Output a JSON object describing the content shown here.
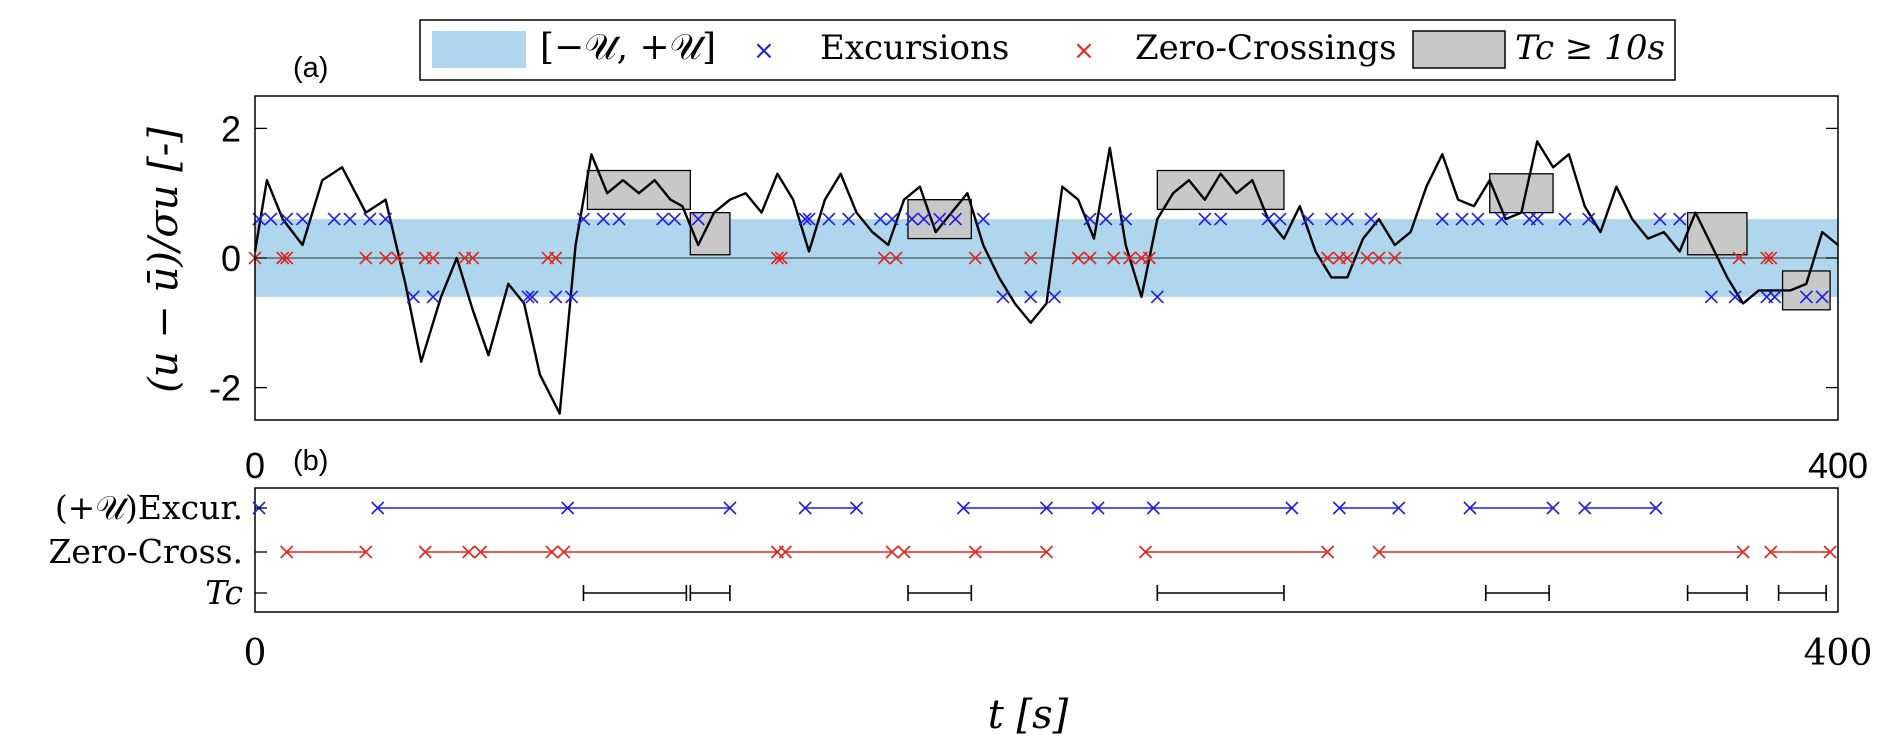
{
  "legend": {
    "band_label": "[−𝒰, +𝒰]",
    "excursions_label": "Excursions",
    "zero_crossings_label": "Zero-Crossings",
    "tc_label": "Tc ≥ 10s"
  },
  "panel_a": {
    "tag": "(a)",
    "ylabel": "(u − ū)/σu [-]"
  },
  "panel_b": {
    "tag": "(b)"
  },
  "xlabel": "t [s]",
  "colors": {
    "band": "#aed6ec",
    "excursion": "#1a1aff",
    "zero_crossing": "#e8241c",
    "tc_box": "#c8c8c8",
    "trace": "#000000"
  },
  "chart_data": [
    {
      "type": "line",
      "panel": "a",
      "xlim": [
        0,
        400
      ],
      "ylim": [
        -2.5,
        2.5
      ],
      "x_ticks": [
        "0",
        "400"
      ],
      "y_ticks": [
        "2",
        "0",
        "-2"
      ],
      "band": [
        -0.6,
        0.6
      ],
      "series_signal": {
        "x": [
          0,
          3,
          7,
          12,
          17,
          22,
          28,
          33,
          38,
          42,
          47,
          51,
          55,
          59,
          64,
          68,
          72,
          77,
          81,
          85,
          89,
          93,
          97,
          101,
          105,
          108,
          112,
          116,
          120,
          124,
          128,
          132,
          136,
          140,
          144,
          148,
          152,
          156,
          160,
          164,
          168,
          172,
          176,
          180,
          184,
          188,
          192,
          196,
          200,
          204,
          208,
          212,
          216,
          220,
          224,
          228,
          232,
          236,
          240,
          244,
          248,
          252,
          256,
          260,
          264,
          268,
          272,
          276,
          280,
          284,
          288,
          292,
          296,
          300,
          304,
          308,
          312,
          316,
          320,
          324,
          328,
          332,
          336,
          340,
          344,
          348,
          352,
          356,
          360,
          364,
          368,
          372,
          376,
          380,
          384,
          388,
          392,
          396,
          400
        ],
        "y": [
          0.1,
          1.2,
          0.6,
          0.2,
          1.2,
          1.4,
          0.7,
          0.9,
          -0.4,
          -1.6,
          -0.6,
          0.0,
          -0.8,
          -1.5,
          -0.4,
          -0.7,
          -1.8,
          -2.4,
          0.2,
          1.6,
          1.0,
          1.2,
          1.0,
          1.2,
          0.9,
          0.8,
          0.2,
          0.7,
          0.9,
          1.0,
          0.7,
          1.3,
          0.9,
          0.1,
          0.9,
          1.3,
          0.7,
          0.4,
          0.2,
          0.9,
          1.1,
          0.4,
          0.7,
          1.0,
          0.2,
          -0.3,
          -0.7,
          -1.0,
          -0.7,
          1.1,
          0.9,
          0.3,
          1.7,
          0.2,
          -0.6,
          0.6,
          1.0,
          1.2,
          0.9,
          1.3,
          1.0,
          1.2,
          0.6,
          0.3,
          0.8,
          0.1,
          -0.3,
          -0.3,
          0.3,
          0.6,
          0.2,
          0.4,
          1.1,
          1.6,
          0.9,
          0.8,
          1.2,
          0.6,
          0.7,
          1.8,
          1.4,
          1.6,
          0.8,
          0.4,
          1.1,
          0.6,
          0.3,
          0.4,
          0.1,
          0.7,
          0.2,
          -0.3,
          -0.7,
          -0.5,
          -0.5,
          -0.5,
          -0.4,
          0.4,
          0.2
        ],
        "color": "#000000"
      },
      "series_excursions": {
        "x": [
          1,
          4,
          8,
          12,
          20,
          24,
          29,
          33,
          40,
          45,
          69,
          70,
          76,
          80,
          83,
          88,
          92,
          103,
          106,
          112,
          139,
          140,
          145,
          150,
          158,
          161,
          166,
          169,
          173,
          177,
          184,
          189,
          196,
          202,
          211,
          215,
          220,
          228,
          240,
          244,
          256,
          259,
          266,
          272,
          276,
          282,
          300,
          305,
          309,
          315,
          322,
          324,
          331,
          337,
          355,
          360,
          368,
          374,
          382,
          384,
          392,
          396
        ],
        "y": [
          0.6,
          0.6,
          0.6,
          0.6,
          0.6,
          0.6,
          0.6,
          0.6,
          -0.6,
          -0.6,
          -0.6,
          -0.6,
          -0.6,
          -0.6,
          0.6,
          0.6,
          0.6,
          0.6,
          0.6,
          0.6,
          0.6,
          0.6,
          0.6,
          0.6,
          0.6,
          0.6,
          0.6,
          0.6,
          0.6,
          0.6,
          0.6,
          -0.6,
          -0.6,
          -0.6,
          0.6,
          0.6,
          0.6,
          -0.6,
          0.6,
          0.6,
          0.6,
          0.6,
          0.6,
          0.6,
          0.6,
          0.6,
          0.6,
          0.6,
          0.6,
          0.6,
          0.6,
          0.6,
          0.6,
          0.6,
          0.6,
          0.6,
          -0.6,
          -0.6,
          -0.6,
          -0.6,
          -0.6,
          -0.6
        ],
        "color": "#1a1aff"
      },
      "series_zero_crossings": {
        "x": [
          0,
          7,
          8,
          28,
          33,
          36,
          43,
          45,
          53,
          55,
          74,
          76,
          132,
          133,
          159,
          162,
          182,
          196,
          208,
          211,
          217,
          221,
          224,
          226,
          271,
          274,
          276,
          281,
          284,
          288,
          375,
          382,
          383
        ],
        "y": [
          0,
          0,
          0,
          0,
          0,
          0,
          0,
          0,
          0,
          0,
          0,
          0,
          0,
          0,
          0,
          0,
          0,
          0,
          0,
          0,
          0,
          0,
          0,
          0,
          0,
          0,
          0,
          0,
          0,
          0,
          0,
          0,
          0
        ],
        "color": "#e8241c"
      },
      "tc_boxes": [
        {
          "x": [
            84,
            110
          ],
          "y": [
            0.75,
            1.35
          ]
        },
        {
          "x": [
            110,
            120
          ],
          "y": [
            0.05,
            0.7
          ]
        },
        {
          "x": [
            165,
            181
          ],
          "y": [
            0.3,
            0.9
          ]
        },
        {
          "x": [
            228,
            260
          ],
          "y": [
            0.75,
            1.35
          ]
        },
        {
          "x": [
            312,
            328
          ],
          "y": [
            0.7,
            1.3
          ]
        },
        {
          "x": [
            362,
            377
          ],
          "y": [
            0.05,
            0.7
          ]
        },
        {
          "x": [
            386,
            398
          ],
          "y": [
            -0.8,
            -0.2
          ]
        }
      ]
    },
    {
      "type": "scatter",
      "panel": "b",
      "xlim": [
        0,
        400
      ],
      "x_ticks": [
        "0",
        "400"
      ],
      "rows": [
        {
          "name": "(+𝒰)Excur.",
          "color": "#1a1aff",
          "markers": [
            1,
            31,
            79,
            120,
            139,
            152,
            179,
            200,
            213,
            227,
            262,
            274,
            289,
            307,
            328,
            336,
            354
          ],
          "segments": [
            [
              31,
              79
            ],
            [
              79,
              120
            ],
            [
              139,
              152
            ],
            [
              179,
              200
            ],
            [
              200,
              213
            ],
            [
              213,
              227
            ],
            [
              227,
              262
            ],
            [
              274,
              289
            ],
            [
              307,
              328
            ],
            [
              336,
              354
            ]
          ]
        },
        {
          "name": "Zero-Cross.",
          "color": "#e8241c",
          "markers": [
            8,
            28,
            43,
            54,
            57,
            75,
            78,
            132,
            134,
            161,
            164,
            182,
            200,
            225,
            271,
            284,
            376,
            383,
            398
          ],
          "segments": [
            [
              8,
              28
            ],
            [
              43,
              54
            ],
            [
              57,
              75
            ],
            [
              78,
              132
            ],
            [
              134,
              161
            ],
            [
              164,
              182
            ],
            [
              182,
              200
            ],
            [
              225,
              271
            ],
            [
              284,
              376
            ],
            [
              383,
              398
            ]
          ]
        },
        {
          "name": "Tc",
          "color": "#000000",
          "markers": [],
          "segments": [
            [
              83,
              109
            ],
            [
              110,
              120
            ],
            [
              165,
              181
            ],
            [
              228,
              260
            ],
            [
              311,
              327
            ],
            [
              362,
              377
            ],
            [
              385,
              397
            ]
          ]
        }
      ]
    }
  ]
}
